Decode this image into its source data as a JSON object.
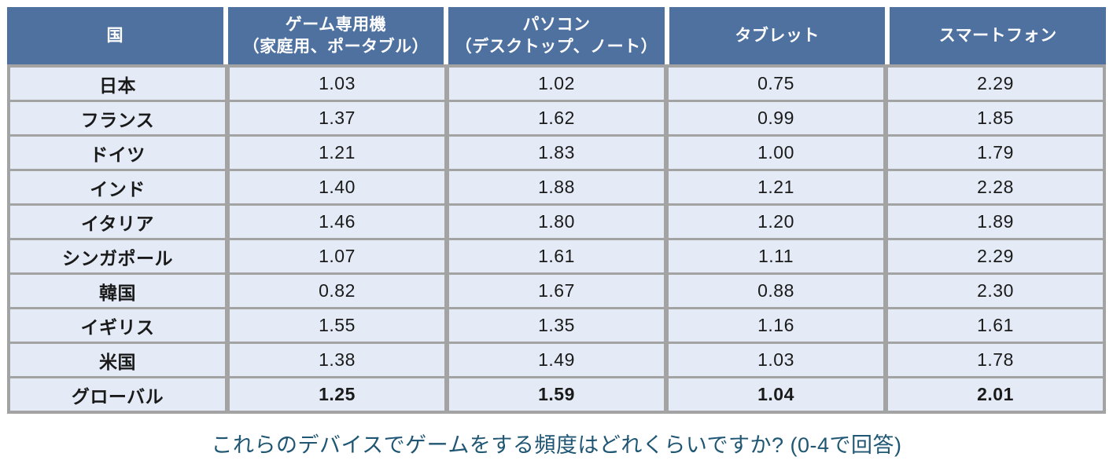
{
  "colors": {
    "header_bg": "#4e71a0",
    "cell_bg": "#e4ebf6",
    "border": "#a3a3a3",
    "text": "#1a1a1a",
    "caption": "#1f5673"
  },
  "table": {
    "headers": [
      "国",
      "ゲーム専用機\n（家庭用、ポータブル）",
      "パソコン\n（デスクトップ、ノート）",
      "タブレット",
      "スマートフォン"
    ],
    "rows": [
      {
        "country": "日本",
        "values": [
          "1.03",
          "1.02",
          "0.75",
          "2.29"
        ],
        "bold": false
      },
      {
        "country": "フランス",
        "values": [
          "1.37",
          "1.62",
          "0.99",
          "1.85"
        ],
        "bold": false
      },
      {
        "country": "ドイツ",
        "values": [
          "1.21",
          "1.83",
          "1.00",
          "1.79"
        ],
        "bold": false
      },
      {
        "country": "インド",
        "values": [
          "1.40",
          "1.88",
          "1.21",
          "2.28"
        ],
        "bold": false
      },
      {
        "country": "イタリア",
        "values": [
          "1.46",
          "1.80",
          "1.20",
          "1.89"
        ],
        "bold": false
      },
      {
        "country": "シンガポール",
        "values": [
          "1.07",
          "1.61",
          "1.11",
          "2.29"
        ],
        "bold": false
      },
      {
        "country": "韓国",
        "values": [
          "0.82",
          "1.67",
          "0.88",
          "2.30"
        ],
        "bold": false
      },
      {
        "country": "イギリス",
        "values": [
          "1.55",
          "1.35",
          "1.16",
          "1.61"
        ],
        "bold": false
      },
      {
        "country": "米国",
        "values": [
          "1.38",
          "1.49",
          "1.03",
          "1.78"
        ],
        "bold": false
      },
      {
        "country": "グローバル",
        "values": [
          "1.25",
          "1.59",
          "1.04",
          "2.01"
        ],
        "bold": true
      }
    ]
  },
  "caption": "これらのデバイスでゲームをする頻度はどれくらいですか? (0-4で回答)",
  "chart_data": {
    "type": "table",
    "title": "これらのデバイスでゲームをする頻度はどれくらいですか? (0-4で回答)",
    "columns": [
      "国",
      "ゲーム専用機（家庭用、ポータブル）",
      "パソコン（デスクトップ、ノート）",
      "タブレット",
      "スマートフォン"
    ],
    "categories": [
      "日本",
      "フランス",
      "ドイツ",
      "インド",
      "イタリア",
      "シンガポール",
      "韓国",
      "イギリス",
      "米国",
      "グローバル"
    ],
    "series": [
      {
        "name": "ゲーム専用機（家庭用、ポータブル）",
        "values": [
          1.03,
          1.37,
          1.21,
          1.4,
          1.46,
          1.07,
          0.82,
          1.55,
          1.38,
          1.25
        ]
      },
      {
        "name": "パソコン（デスクトップ、ノート）",
        "values": [
          1.02,
          1.62,
          1.83,
          1.88,
          1.8,
          1.61,
          1.67,
          1.35,
          1.49,
          1.59
        ]
      },
      {
        "name": "タブレット",
        "values": [
          0.75,
          0.99,
          1.0,
          1.21,
          1.2,
          1.11,
          0.88,
          1.16,
          1.03,
          1.04
        ]
      },
      {
        "name": "スマートフォン",
        "values": [
          2.29,
          1.85,
          1.79,
          2.28,
          1.89,
          2.29,
          2.3,
          1.61,
          1.78,
          2.01
        ]
      }
    ],
    "value_scale": [
      0,
      4
    ]
  }
}
